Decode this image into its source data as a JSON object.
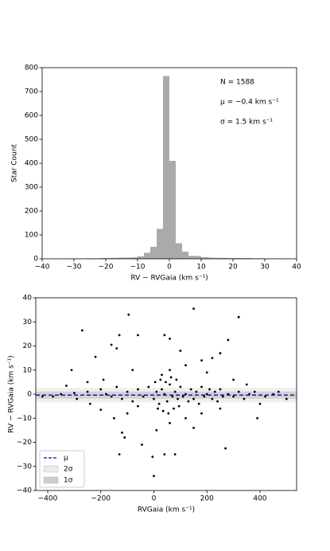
{
  "chart_data": [
    {
      "type": "histogram",
      "xlabel": "RV − RVGaia (km s⁻¹)",
      "ylabel": "Star Count",
      "color": "#aaaaaa",
      "bins": [
        -40,
        -38,
        -36,
        -34,
        -32,
        -30,
        -28,
        -26,
        -24,
        -22,
        -20,
        -18,
        -16,
        -14,
        -12,
        -10,
        -8,
        -6,
        -4,
        -2,
        0,
        2,
        4,
        6,
        8,
        10,
        12,
        14,
        16,
        18,
        20,
        22,
        24,
        26,
        28,
        30,
        32,
        34,
        36,
        38,
        40
      ],
      "values": [
        0,
        0,
        0,
        0,
        1,
        1,
        1,
        2,
        2,
        3,
        3,
        4,
        5,
        5,
        6,
        10,
        25,
        50,
        125,
        765,
        410,
        65,
        30,
        12,
        12,
        7,
        5,
        4,
        4,
        3,
        3,
        3,
        3,
        2,
        2,
        1,
        1,
        1,
        0,
        0
      ],
      "xlim": [
        -40,
        40
      ],
      "xticks": [
        {
          "value": -40,
          "label": "−40"
        },
        {
          "value": -30,
          "label": "−30"
        },
        {
          "value": -20,
          "label": "−20"
        },
        {
          "value": -10,
          "label": "−10"
        },
        0,
        10,
        20,
        30,
        40
      ],
      "ylim": [
        0,
        800
      ],
      "yticks": [
        0,
        100,
        200,
        300,
        400,
        500,
        600,
        700,
        800
      ],
      "annotations": [
        "N = 1588",
        "μ = −0.4 km s⁻¹",
        "σ = 1.5 km s⁻¹"
      ]
    },
    {
      "type": "scatter",
      "xlabel": "RVGaia (km s⁻¹)",
      "ylabel": "RV − RVGaia (km s⁻¹)",
      "color": "#000000",
      "x": [
        -270,
        -95,
        150,
        320,
        -310,
        -220,
        -130,
        -60,
        40,
        60,
        -160,
        -140,
        280,
        250,
        220,
        100,
        180,
        120,
        -80,
        60,
        30,
        200,
        -190,
        -250,
        300,
        350,
        -100,
        -150,
        -120,
        -110,
        -130,
        -45,
        -5,
        40,
        80,
        0,
        10,
        60,
        120,
        150,
        180,
        250,
        270,
        -200,
        -60,
        400,
        500,
        390,
        -420,
        -330,
        -300,
        -290,
        -250,
        -240,
        -200,
        -180,
        -160,
        -140,
        -120,
        -100,
        -80,
        -60,
        -40,
        -20,
        0,
        10,
        20,
        30,
        40,
        50,
        60,
        70,
        80,
        90,
        100,
        110,
        120,
        130,
        140,
        150,
        160,
        170,
        180,
        190,
        200,
        210,
        220,
        230,
        240,
        250,
        260,
        280,
        300,
        320,
        340,
        360,
        380,
        420,
        450,
        470,
        -350,
        -380,
        5,
        15,
        25,
        35,
        45,
        55,
        65,
        75,
        85,
        95
      ],
      "values": [
        26.5,
        33,
        35.5,
        32,
        10,
        15.5,
        24.5,
        24.5,
        24.5,
        23,
        20.5,
        19,
        22.5,
        17,
        15,
        18,
        14,
        12,
        10,
        10,
        8,
        9,
        6,
        5,
        6,
        4,
        -8,
        -10,
        -16,
        -18,
        -25,
        -21,
        -26,
        -25,
        -25,
        -34,
        -15,
        -12,
        -10,
        -14,
        -8,
        -6,
        -22.5,
        -6.5,
        -5,
        -4,
        -2,
        -10,
        -1,
        3.5,
        0.5,
        -2,
        1,
        -4,
        2,
        0,
        -1,
        3,
        -2,
        1,
        -3,
        2,
        -1,
        3,
        -2,
        1,
        -4,
        2,
        0,
        -3,
        4,
        -1,
        1,
        -2,
        3,
        -1,
        0,
        -3,
        2,
        -2,
        1,
        -4,
        3,
        -1,
        0,
        2,
        -2,
        1,
        -3,
        2,
        -1,
        0,
        -1,
        1,
        -2,
        0,
        1,
        -1,
        0,
        1,
        0,
        -1,
        5,
        -6,
        6,
        -7,
        5,
        -8,
        7,
        -6,
        6,
        -5
      ],
      "xlim": [
        -445,
        538
      ],
      "xticks": [
        {
          "value": -400,
          "label": "−400"
        },
        {
          "value": -200,
          "label": "−200"
        },
        0,
        200,
        400
      ],
      "ylim": [
        -40,
        40
      ],
      "yticks": [
        {
          "value": -40,
          "label": "−40"
        },
        {
          "value": -30,
          "label": "−30"
        },
        {
          "value": -20,
          "label": "−20"
        },
        {
          "value": -10,
          "label": "−10"
        },
        0,
        10,
        20,
        30,
        40
      ],
      "lines": [
        {
          "name": "μ",
          "value": -0.4,
          "color": "#0000cc"
        }
      ],
      "bands": [
        {
          "name": "2σ",
          "lower": -3.4,
          "upper": 2.6,
          "color": "#ebebeb"
        },
        {
          "name": "1σ",
          "lower": -1.9,
          "upper": 1.1,
          "color": "#cccccc"
        }
      ],
      "legend": "lower left"
    }
  ]
}
